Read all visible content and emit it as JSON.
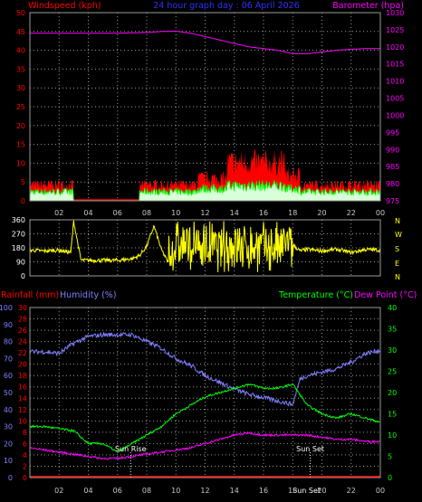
{
  "header": {
    "left": "Windspeed (kph)",
    "center": "24 hour graph day : 06 April 2026",
    "right": "Barometer (hpa)"
  },
  "colors": {
    "wind": "#ff0000",
    "gust_fill": "#ff0000",
    "avg_wind": "#00ff00",
    "barometer": "#ff00ff",
    "direction": "#ffff00",
    "humidity": "#8080ff",
    "temperature": "#00ff00",
    "dewpoint": "#ff00ff",
    "rain": "#ff0000",
    "grid": "#9a9a9a"
  },
  "time_ticks": [
    "02",
    "04",
    "06",
    "08",
    "10",
    "12",
    "14",
    "16",
    "18",
    "20",
    "22",
    "00"
  ],
  "sun_labels": [
    "Sun Rise",
    "Sun Set",
    "Sun Set"
  ],
  "chart_data": [
    {
      "type": "line",
      "name": "wind-barometer",
      "left_axis": {
        "label": "Windspeed (kph)",
        "ticks": [
          "0",
          "5",
          "10",
          "15",
          "20",
          "25",
          "30",
          "35",
          "40",
          "45",
          "50"
        ],
        "range": [
          0,
          50
        ]
      },
      "right_axis": {
        "label": "Barometer (hpa)",
        "ticks": [
          "975",
          "980",
          "985",
          "990",
          "995",
          "1000",
          "1005",
          "1010",
          "1015",
          "1020",
          "1025",
          "1030"
        ],
        "range": [
          975,
          1030
        ]
      },
      "x_hours": [
        0,
        24
      ],
      "series": [
        {
          "name": "Barometer (hpa)",
          "axis": "right",
          "x": [
            0,
            2,
            4,
            6,
            8,
            9,
            10,
            11,
            12,
            13,
            14,
            15,
            16,
            17,
            18,
            19,
            20,
            21,
            22,
            23,
            24
          ],
          "y": [
            1024,
            1024,
            1024,
            1024,
            1024.2,
            1024.5,
            1024.6,
            1024,
            1023,
            1022,
            1021,
            1020,
            1019.5,
            1019,
            1018,
            1018,
            1018.5,
            1019,
            1019.3,
            1019.5,
            1019.5
          ]
        }
      ],
      "wind_periods": [
        {
          "x": [
            0,
            3
          ],
          "gust": 5,
          "avg": 3
        },
        {
          "x": [
            3,
            7.5
          ],
          "gust": 0,
          "avg": 0
        },
        {
          "x": [
            7.5,
            11.5
          ],
          "gust": 5,
          "avg": 3
        },
        {
          "x": [
            11.5,
            13.5
          ],
          "gust": 7,
          "avg": 4
        },
        {
          "x": [
            13.5,
            17.5
          ],
          "gust": 12,
          "avg": 5
        },
        {
          "x": [
            17.5,
            18.5
          ],
          "gust": 8,
          "avg": 4
        },
        {
          "x": [
            18.5,
            24
          ],
          "gust": 5,
          "avg": 3
        }
      ]
    },
    {
      "type": "scatter",
      "name": "wind-direction",
      "left_axis": {
        "ticks": [
          "360",
          "270",
          "180",
          "90",
          "0"
        ],
        "range": [
          0,
          360
        ]
      },
      "right_axis": {
        "ticks": [
          "N",
          "W",
          "S",
          "E",
          "N"
        ]
      },
      "x": [
        0,
        1,
        2,
        2.8,
        3,
        3.5,
        4,
        5,
        6,
        7,
        7.5,
        8,
        8.5,
        9,
        9.5,
        10,
        11,
        12,
        13,
        14,
        15,
        16,
        17,
        17.5,
        18,
        18.5,
        19,
        20,
        21,
        22,
        23,
        24
      ],
      "y": [
        165,
        160,
        165,
        150,
        350,
        100,
        100,
        100,
        100,
        110,
        130,
        190,
        320,
        170,
        80,
        180,
        200,
        170,
        190,
        210,
        180,
        200,
        170,
        230,
        200,
        160,
        170,
        160,
        170,
        150,
        170,
        165
      ],
      "chaotic_range": [
        9.5,
        18
      ]
    },
    {
      "type": "line",
      "name": "temperature-humidity-rain",
      "left_axes": [
        {
          "label": "Rainfall (mm)",
          "ticks": [
            "0",
            "2",
            "4",
            "6",
            "8",
            "10",
            "12",
            "14",
            "16",
            "18",
            "20",
            "22",
            "24",
            "26",
            "28",
            "30"
          ],
          "range": [
            0,
            30
          ]
        },
        {
          "label": "Humidity (%)",
          "ticks": [
            "0",
            "10",
            "20",
            "30",
            "40",
            "50",
            "60",
            "70",
            "80",
            "90",
            "100"
          ],
          "range": [
            0,
            100
          ]
        }
      ],
      "right_axis": {
        "label": "Temperature (°C)",
        "label2": "Dew Point (°C)",
        "ticks": [
          "0",
          "5",
          "10",
          "15",
          "20",
          "25",
          "30",
          "35",
          "40"
        ],
        "range": [
          0,
          40
        ]
      },
      "x_hours": [
        0,
        24
      ],
      "series": [
        {
          "name": "Humidity (%)",
          "axis": "humidity",
          "x": [
            0,
            1,
            2,
            3,
            4,
            5,
            6,
            7,
            8,
            9,
            10,
            11,
            12,
            13,
            14,
            15,
            16,
            17,
            18,
            18.5,
            19,
            20,
            21,
            22,
            23,
            24
          ],
          "y": [
            74,
            74,
            73,
            79,
            83,
            84,
            84,
            84,
            80,
            76,
            70,
            66,
            60,
            56,
            52,
            49,
            47,
            45,
            43,
            58,
            60,
            62,
            64,
            68,
            73,
            75
          ]
        },
        {
          "name": "Temperature (°C)",
          "axis": "right",
          "x": [
            0,
            1,
            2,
            3,
            4,
            5,
            6,
            7,
            8,
            9,
            10,
            11,
            12,
            13,
            14,
            15,
            16,
            17,
            18,
            19,
            20,
            21,
            22,
            23,
            24
          ],
          "y": [
            12,
            12,
            11.5,
            11,
            8,
            8,
            6,
            8,
            10,
            12,
            15,
            17,
            19,
            20,
            21,
            22,
            21,
            21,
            22,
            17,
            15,
            14,
            15,
            14,
            13
          ]
        },
        {
          "name": "Dew Point (°C)",
          "axis": "right",
          "x": [
            0,
            1,
            2,
            3,
            4,
            5,
            6,
            7,
            8,
            9,
            10,
            11,
            12,
            13,
            14,
            15,
            16,
            17,
            18,
            19,
            20,
            21,
            22,
            23,
            24
          ],
          "y": [
            7,
            6.5,
            6,
            5.5,
            5,
            4.5,
            4.5,
            5,
            5.5,
            6,
            6.5,
            7,
            8,
            9,
            10,
            10.5,
            10,
            10,
            10,
            10,
            9.5,
            9,
            9,
            8.5,
            8.5
          ]
        },
        {
          "name": "Rainfall (mm)",
          "axis": "rain",
          "x": [
            0,
            24
          ],
          "y": [
            0,
            0
          ]
        }
      ],
      "sunrise_hour": 6.9,
      "sunset_hour": 19.2
    }
  ]
}
